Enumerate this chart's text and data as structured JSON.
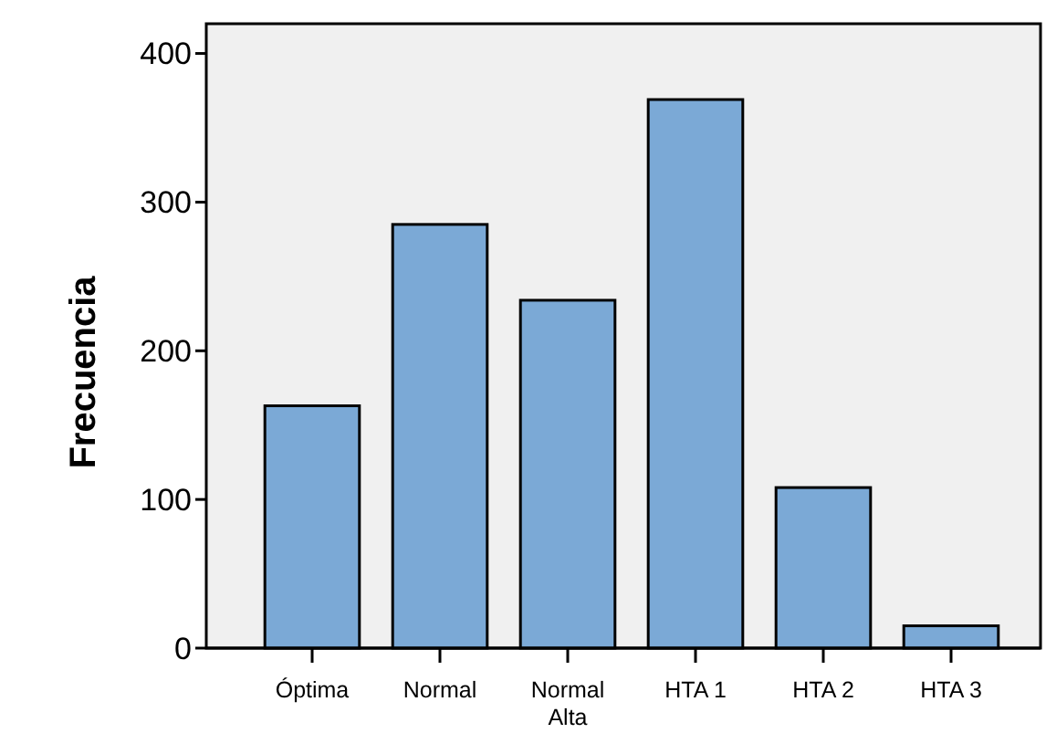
{
  "chart_data": {
    "type": "bar",
    "ylabel": "Frecuencia",
    "categories": [
      "Óptima",
      "Normal",
      "Normal Alta",
      "HTA 1",
      "HTA 2",
      "HTA 3"
    ],
    "values": [
      163,
      285,
      234,
      369,
      108,
      15
    ],
    "color": "#7ba9d6",
    "ylim": [
      0,
      420
    ],
    "yticks": [
      0,
      100,
      200,
      300,
      400
    ],
    "grid": false
  }
}
